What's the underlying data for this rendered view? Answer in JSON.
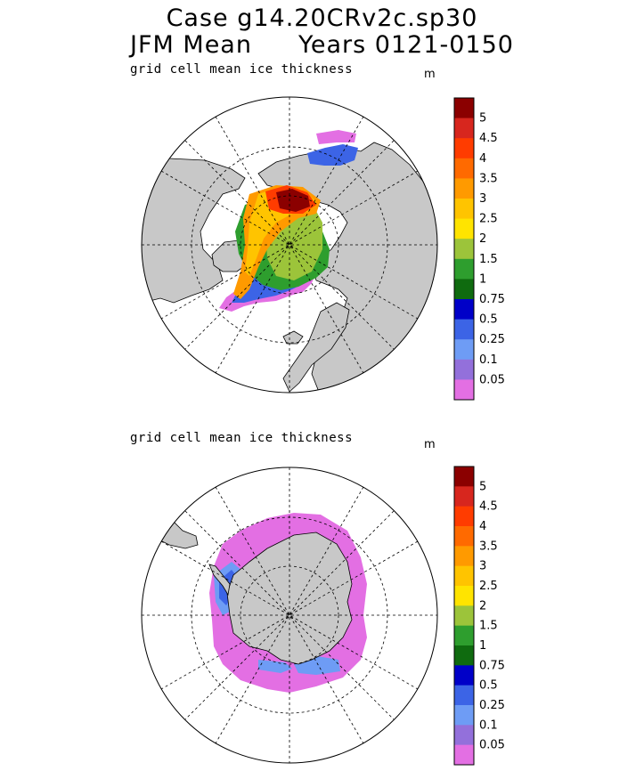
{
  "header": {
    "line1": "Case g14.20CRv2c.sp30",
    "line2_left": "JFM Mean",
    "line2_right": "Years 0121-0150"
  },
  "north_panel": {
    "label": "grid cell mean ice thickness",
    "unit": "m"
  },
  "south_panel": {
    "label": "grid cell mean ice thickness",
    "unit": "m"
  },
  "colorbar": {
    "labels": [
      "5",
      "4.5",
      "4",
      "3.5",
      "3",
      "2.5",
      "2",
      "1.5",
      "1",
      "0.75",
      "0.5",
      "0.25",
      "0.1",
      "0.05"
    ],
    "colors": [
      "#8b0000",
      "#d7261e",
      "#ff3c00",
      "#ff6a00",
      "#ff9a00",
      "#ffc400",
      "#ffe400",
      "#9cc43a",
      "#2e9e2e",
      "#0f6b0f",
      "#0000c8",
      "#3c64e6",
      "#6e9cf5",
      "#9370db",
      "#e36fe3"
    ]
  },
  "colors": {
    "land": "#c8c8c8",
    "ocean": "#ffffff"
  }
}
